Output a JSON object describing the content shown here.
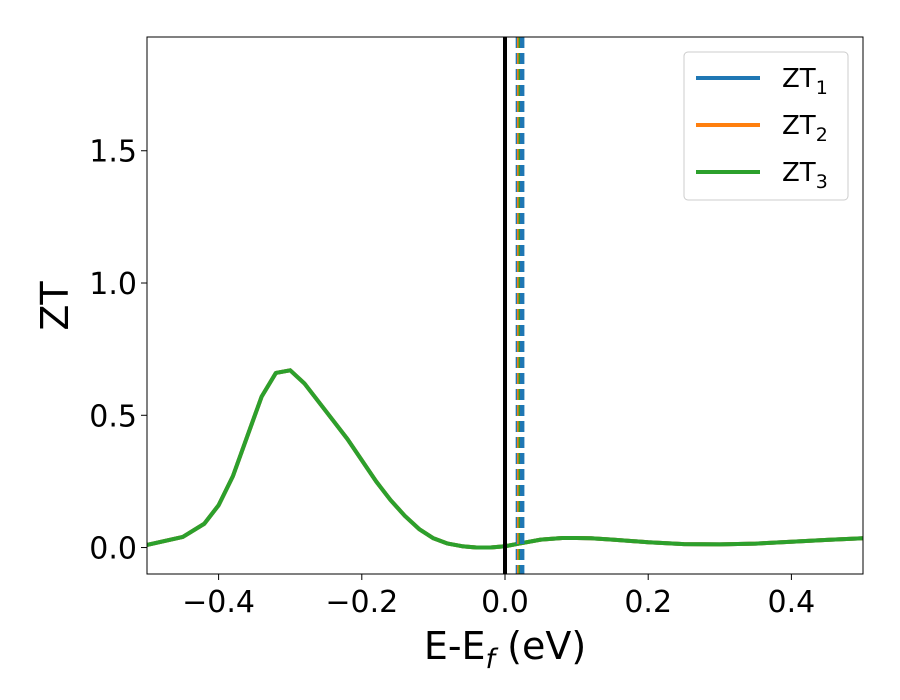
{
  "chart_data": {
    "type": "line",
    "xlabel": {
      "main": "E-E",
      "sub": "f",
      "suffix": " (eV)"
    },
    "ylabel": "ZT",
    "xlim": [
      -0.5,
      0.5
    ],
    "ylim": [
      -0.1,
      1.93
    ],
    "xticks": [
      -0.4,
      -0.2,
      0.0,
      0.2,
      0.4
    ],
    "xtick_labels": [
      "−0.4",
      "−0.2",
      "0.0",
      "0.2",
      "0.4"
    ],
    "yticks": [
      0.0,
      0.5,
      1.0,
      1.5
    ],
    "ytick_labels": [
      "0.0",
      "0.5",
      "1.0",
      "1.5"
    ],
    "grid": false,
    "legend": "top-right",
    "x": [
      -0.5,
      -0.45,
      -0.42,
      -0.4,
      -0.38,
      -0.36,
      -0.34,
      -0.32,
      -0.3,
      -0.28,
      -0.26,
      -0.24,
      -0.22,
      -0.2,
      -0.18,
      -0.16,
      -0.14,
      -0.12,
      -0.1,
      -0.08,
      -0.06,
      -0.04,
      -0.02,
      0.0,
      0.02,
      0.05,
      0.08,
      0.1,
      0.12,
      0.15,
      0.2,
      0.25,
      0.3,
      0.35,
      0.4,
      0.45,
      0.5
    ],
    "series": [
      {
        "name": "ZT",
        "sub": "1",
        "color": "#1f77b4",
        "values": [
          0.01,
          0.04,
          0.09,
          0.16,
          0.27,
          0.42,
          0.57,
          0.66,
          0.67,
          0.62,
          0.55,
          0.48,
          0.41,
          0.33,
          0.25,
          0.18,
          0.12,
          0.07,
          0.035,
          0.015,
          0.005,
          0.0,
          0.0,
          0.005,
          0.015,
          0.03,
          0.036,
          0.036,
          0.035,
          0.03,
          0.02,
          0.013,
          0.012,
          0.015,
          0.022,
          0.029,
          0.035
        ]
      },
      {
        "name": "ZT",
        "sub": "2",
        "color": "#ff7f0e",
        "values": [
          0.01,
          0.04,
          0.09,
          0.16,
          0.27,
          0.42,
          0.57,
          0.66,
          0.67,
          0.62,
          0.55,
          0.48,
          0.41,
          0.33,
          0.25,
          0.18,
          0.12,
          0.07,
          0.035,
          0.015,
          0.005,
          0.0,
          0.0,
          0.005,
          0.015,
          0.03,
          0.036,
          0.036,
          0.035,
          0.03,
          0.02,
          0.013,
          0.012,
          0.015,
          0.022,
          0.029,
          0.035
        ]
      },
      {
        "name": "ZT",
        "sub": "3",
        "color": "#2ca02c",
        "values": [
          0.01,
          0.04,
          0.09,
          0.16,
          0.27,
          0.42,
          0.57,
          0.66,
          0.67,
          0.62,
          0.55,
          0.48,
          0.41,
          0.33,
          0.25,
          0.18,
          0.12,
          0.07,
          0.035,
          0.015,
          0.005,
          0.0,
          0.0,
          0.005,
          0.015,
          0.03,
          0.036,
          0.036,
          0.035,
          0.03,
          0.02,
          0.013,
          0.012,
          0.015,
          0.022,
          0.029,
          0.035
        ]
      }
    ],
    "vlines": [
      {
        "x": 0.0,
        "style": "solid",
        "color": "#000000"
      },
      {
        "x": 0.017,
        "style": "dashed",
        "color": "#1f77b4"
      },
      {
        "x": 0.019,
        "style": "dashed",
        "color": "#ff7f0e"
      },
      {
        "x": 0.021,
        "style": "dashed",
        "color": "#2ca02c"
      },
      {
        "x": 0.023,
        "style": "dashed",
        "color": "#1f77b4"
      },
      {
        "x": 0.025,
        "style": "dashed",
        "color": "#1f77b4"
      }
    ]
  }
}
